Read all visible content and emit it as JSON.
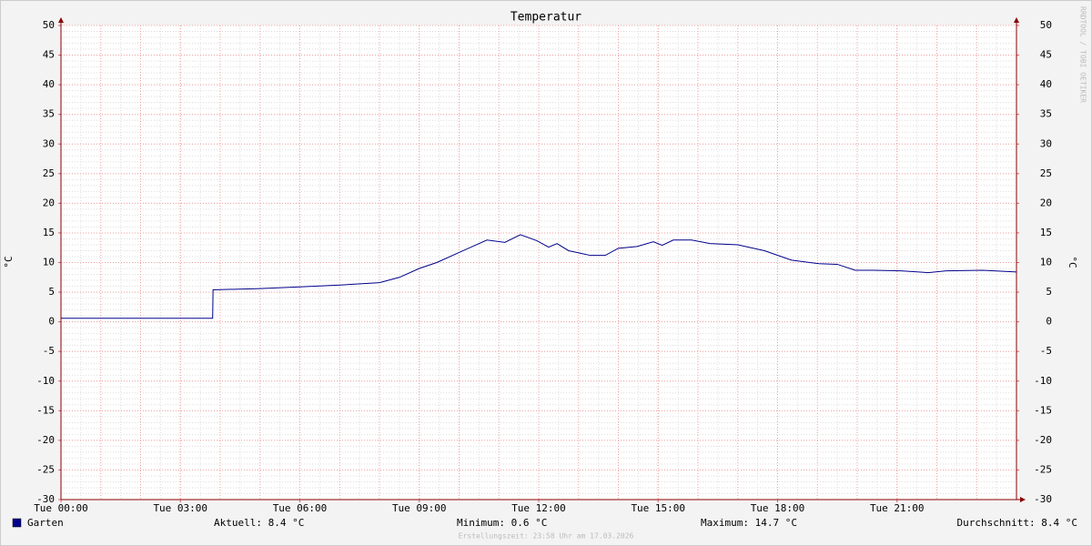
{
  "chart_data": {
    "type": "line",
    "title": "Temperatur",
    "y_label": "°C",
    "watermark": "RRDTOOL / TOBI OETIKER",
    "footer": "Erstellungszeit: 23:58 Uhr am 17.03.2026",
    "xlim": [
      0,
      24
    ],
    "xticks": [
      {
        "value": 0,
        "label": "Tue 00:00"
      },
      {
        "value": 3,
        "label": "Tue 03:00"
      },
      {
        "value": 6,
        "label": "Tue 06:00"
      },
      {
        "value": 9,
        "label": "Tue 09:00"
      },
      {
        "value": 12,
        "label": "Tue 12:00"
      },
      {
        "value": 15,
        "label": "Tue 15:00"
      },
      {
        "value": 18,
        "label": "Tue 18:00"
      },
      {
        "value": 21,
        "label": "Tue 21:00"
      }
    ],
    "ylim": [
      -30,
      50
    ],
    "yticks": [
      -30,
      -25,
      -20,
      -15,
      -10,
      -5,
      0,
      5,
      10,
      15,
      20,
      25,
      30,
      35,
      40,
      45,
      50
    ],
    "grid": true,
    "x": [
      0,
      3.81,
      3.82,
      5,
      6,
      7,
      8,
      8.5,
      9,
      9.44,
      10,
      10.7,
      11.15,
      11.54,
      11.95,
      12.25,
      12.46,
      12.75,
      13.3,
      13.67,
      14,
      14.47,
      14.88,
      15.1,
      15.38,
      15.84,
      16.3,
      17,
      17.67,
      18.35,
      19.04,
      19.5,
      19.95,
      20.4,
      21.1,
      21.78,
      22.24,
      23.15,
      24
    ],
    "series": [
      {
        "name": "Garten",
        "color": "#00008b",
        "values": [
          0.6,
          0.6,
          5.4,
          5.6,
          5.9,
          6.2,
          6.6,
          7.5,
          9.0,
          10.0,
          11.7,
          13.8,
          13.4,
          14.7,
          13.7,
          12.6,
          13.2,
          12.0,
          11.2,
          11.2,
          12.4,
          12.7,
          13.5,
          12.9,
          13.8,
          13.8,
          13.2,
          13.0,
          12.0,
          10.4,
          9.8,
          9.7,
          8.7,
          8.7,
          8.6,
          8.3,
          8.6,
          8.7,
          8.4
        ]
      }
    ],
    "legend_stats": [
      "Aktuell: 8.4 °C",
      "Minimum: 0.6 °C",
      "Maximum: 14.7 °C",
      "Durchschnitt: 8.4 °C"
    ]
  }
}
